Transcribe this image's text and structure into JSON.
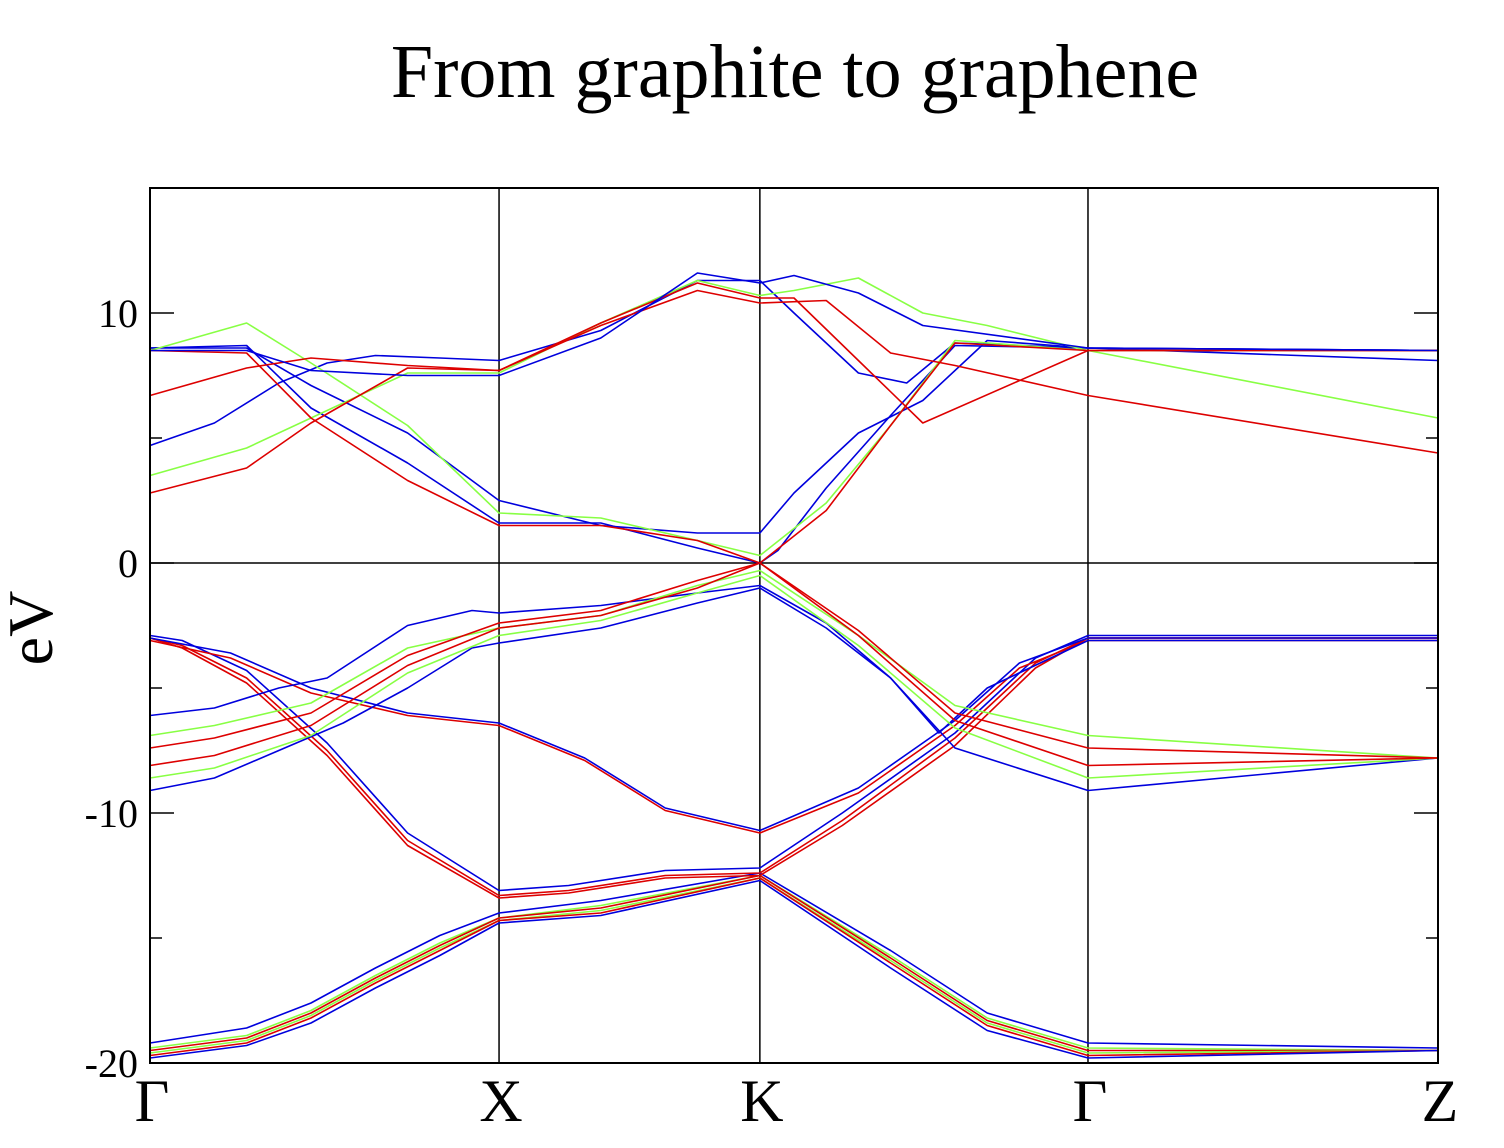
{
  "chart_data": {
    "type": "line",
    "title": "From graphite to graphene",
    "xlabel": "",
    "ylabel": "eV",
    "ylim": [
      -20,
      15
    ],
    "xlim": [
      0,
      4
    ],
    "y_ticks": [
      -20,
      -10,
      0,
      10
    ],
    "y_minor_ticks": [
      -15,
      -5,
      5
    ],
    "k_points": [
      {
        "x": 0,
        "label": "Γ"
      },
      {
        "x": 1.084,
        "label": "X"
      },
      {
        "x": 1.894,
        "label": "K"
      },
      {
        "x": 2.913,
        "label": "Γ"
      },
      {
        "x": 4,
        "label": "Z"
      }
    ],
    "zero_line": 0,
    "colors": {
      "blue": "#0000dd",
      "green": "#88ff44",
      "red": "#dd0000",
      "axis": "#000000"
    },
    "series": [
      {
        "color": "blue",
        "x": [
          0,
          0.3,
          0.5,
          0.7,
          0.9,
          1.084,
          1.4,
          1.894,
          2.3,
          2.6,
          2.913,
          4
        ],
        "y": [
          -19.2,
          -18.6,
          -17.6,
          -16.2,
          -14.9,
          -14.0,
          -13.5,
          -12.4,
          -15.5,
          -18.0,
          -19.2,
          -19.4
        ]
      },
      {
        "color": "green",
        "x": [
          0,
          0.3,
          0.5,
          0.7,
          0.9,
          1.084,
          1.4,
          1.894,
          2.3,
          2.6,
          2.913,
          4
        ],
        "y": [
          -19.4,
          -18.9,
          -17.9,
          -16.5,
          -15.2,
          -14.2,
          -13.7,
          -12.5,
          -15.7,
          -18.2,
          -19.4,
          -19.5
        ]
      },
      {
        "color": "red",
        "x": [
          0,
          0.3,
          0.5,
          0.7,
          0.9,
          1.084,
          1.4,
          1.894,
          2.3,
          2.6,
          2.913,
          4
        ],
        "y": [
          -19.5,
          -19.0,
          -18.0,
          -16.6,
          -15.3,
          -14.2,
          -13.8,
          -12.5,
          -15.8,
          -18.3,
          -19.5,
          -19.5
        ]
      },
      {
        "color": "green",
        "x": [
          0,
          0.3,
          0.5,
          0.7,
          0.9,
          1.084,
          1.4,
          1.894,
          2.3,
          2.6,
          2.913,
          4
        ],
        "y": [
          -19.6,
          -19.1,
          -18.1,
          -16.7,
          -15.4,
          -14.3,
          -13.9,
          -12.6,
          -15.9,
          -18.4,
          -19.6,
          -19.5
        ]
      },
      {
        "color": "red",
        "x": [
          0,
          0.3,
          0.5,
          0.7,
          0.9,
          1.084,
          1.4,
          1.894,
          2.3,
          2.6,
          2.913,
          4
        ],
        "y": [
          -19.7,
          -19.2,
          -18.2,
          -16.8,
          -15.5,
          -14.3,
          -14.0,
          -12.6,
          -16.0,
          -18.5,
          -19.7,
          -19.5
        ]
      },
      {
        "color": "blue",
        "x": [
          0,
          0.3,
          0.5,
          0.7,
          0.9,
          1.084,
          1.4,
          1.894,
          2.3,
          2.6,
          2.913,
          4
        ],
        "y": [
          -19.8,
          -19.3,
          -18.4,
          -17.0,
          -15.7,
          -14.4,
          -14.1,
          -12.7,
          -16.2,
          -18.7,
          -19.8,
          -19.5
        ]
      },
      {
        "color": "blue",
        "x": [
          0,
          0.1,
          0.3,
          0.55,
          0.8,
          1.084,
          1.3,
          1.6,
          1.894,
          2.15,
          2.5,
          2.75,
          2.913,
          4
        ],
        "y": [
          -2.9,
          -3.1,
          -4.3,
          -7.2,
          -10.8,
          -13.1,
          -12.9,
          -12.3,
          -12.2,
          -10.0,
          -6.8,
          -3.8,
          -2.9,
          -2.9
        ]
      },
      {
        "color": "red",
        "x": [
          0,
          0.1,
          0.3,
          0.55,
          0.8,
          1.084,
          1.3,
          1.6,
          1.894,
          2.15,
          2.5,
          2.75,
          2.913,
          4
        ],
        "y": [
          -3.0,
          -3.3,
          -4.6,
          -7.5,
          -11.1,
          -13.3,
          -13.1,
          -12.5,
          -12.4,
          -10.3,
          -7.0,
          -4.0,
          -3.0,
          -3.0
        ]
      },
      {
        "color": "red",
        "x": [
          0,
          0.1,
          0.3,
          0.55,
          0.8,
          1.084,
          1.3,
          1.6,
          1.894,
          2.15,
          2.5,
          2.75,
          2.913,
          4
        ],
        "y": [
          -3.0,
          -3.4,
          -4.8,
          -7.7,
          -11.3,
          -13.4,
          -13.2,
          -12.6,
          -12.5,
          -10.5,
          -7.3,
          -4.2,
          -3.0,
          -3.0
        ]
      },
      {
        "color": "blue",
        "x": [
          0,
          0.25,
          0.5,
          0.8,
          1.084,
          1.35,
          1.6,
          1.894,
          2.2,
          2.5,
          2.7,
          2.913,
          4
        ],
        "y": [
          -3.0,
          -3.6,
          -5.0,
          -6.0,
          -6.4,
          -7.8,
          -9.8,
          -10.7,
          -9.0,
          -6.3,
          -4.0,
          -3.0,
          -3.0
        ]
      },
      {
        "color": "red",
        "x": [
          0,
          0.25,
          0.5,
          0.8,
          1.084,
          1.35,
          1.6,
          1.894,
          2.2,
          2.5,
          2.7,
          2.913,
          4
        ],
        "y": [
          -3.1,
          -3.8,
          -5.2,
          -6.1,
          -6.5,
          -7.9,
          -9.9,
          -10.8,
          -9.2,
          -6.5,
          -4.2,
          -3.1,
          -3.1
        ]
      },
      {
        "color": "blue",
        "x": [
          0,
          0.2,
          0.4,
          0.55,
          0.8,
          1.0,
          1.084,
          1.4,
          1.7,
          1.894,
          2.1,
          2.3,
          2.45,
          2.6,
          2.913,
          4
        ],
        "y": [
          -6.1,
          -5.8,
          -5.0,
          -4.6,
          -2.5,
          -1.9,
          -2.0,
          -1.7,
          -1.2,
          -0.9,
          -2.4,
          -4.6,
          -6.8,
          -5.0,
          -3.1,
          -3.1
        ]
      },
      {
        "color": "blue",
        "x": [
          0,
          0.2,
          0.4,
          0.6,
          0.8,
          1.0,
          1.084,
          1.4,
          1.7,
          1.894,
          2.1,
          2.3,
          2.5,
          2.913,
          4
        ],
        "y": [
          -9.1,
          -8.6,
          -7.5,
          -6.4,
          -5.0,
          -3.4,
          -3.2,
          -2.6,
          -1.6,
          -1.0,
          -2.6,
          -4.6,
          -7.4,
          -9.1,
          -7.8
        ]
      },
      {
        "color": "green",
        "x": [
          0,
          0.2,
          0.5,
          0.8,
          1.084,
          1.4,
          1.7,
          1.894,
          2.2,
          2.5,
          2.913,
          4
        ],
        "y": [
          -6.9,
          -6.5,
          -5.6,
          -3.4,
          -2.6,
          -2.1,
          -0.9,
          -0.3,
          -2.9,
          -5.7,
          -6.9,
          -7.8
        ]
      },
      {
        "color": "green",
        "x": [
          0,
          0.2,
          0.5,
          0.8,
          1.084,
          1.4,
          1.7,
          1.894,
          2.2,
          2.5,
          2.913,
          4
        ],
        "y": [
          -8.6,
          -8.2,
          -6.9,
          -4.4,
          -2.9,
          -2.3,
          -1.2,
          -0.5,
          -3.3,
          -6.6,
          -8.6,
          -7.8
        ]
      },
      {
        "color": "red",
        "x": [
          0,
          0.2,
          0.5,
          0.8,
          1.084,
          1.4,
          1.7,
          1.894,
          2.2,
          2.5,
          2.913,
          4
        ],
        "y": [
          -7.4,
          -7.0,
          -6.0,
          -3.7,
          -2.4,
          -1.9,
          -0.7,
          0.0,
          -2.7,
          -6.0,
          -7.4,
          -7.8
        ]
      },
      {
        "color": "red",
        "x": [
          0,
          0.2,
          0.5,
          0.8,
          1.084,
          1.4,
          1.7,
          1.894,
          2.2,
          2.5,
          2.913,
          4
        ],
        "y": [
          -8.1,
          -7.7,
          -6.5,
          -4.1,
          -2.6,
          -2.1,
          -1.0,
          0.0,
          -2.9,
          -6.3,
          -8.1,
          -7.8
        ]
      },
      {
        "color": "blue",
        "x": [
          0,
          0.2,
          0.4,
          0.55,
          0.7,
          0.9,
          1.084,
          1.4,
          1.7,
          1.894,
          2.0,
          2.2,
          2.35,
          2.5,
          2.913,
          4
        ],
        "y": [
          4.7,
          5.6,
          7.2,
          8.0,
          8.3,
          8.2,
          8.1,
          9.3,
          11.3,
          11.3,
          10.0,
          7.6,
          7.2,
          8.8,
          8.6,
          8.5
        ]
      },
      {
        "color": "blue",
        "x": [
          0,
          0.3,
          0.5,
          0.8,
          1.084,
          1.4,
          1.7,
          1.894,
          2.0,
          2.2,
          2.4,
          2.6,
          2.913,
          4
        ],
        "y": [
          8.6,
          8.6,
          7.1,
          5.2,
          2.5,
          1.5,
          1.2,
          1.2,
          2.8,
          5.2,
          6.5,
          8.9,
          8.6,
          8.1
        ]
      },
      {
        "color": "blue",
        "x": [
          0,
          0.3,
          0.5,
          0.8,
          1.084,
          1.4,
          1.7,
          1.894,
          1.95,
          2.1,
          2.3,
          2.5,
          2.913,
          4
        ],
        "y": [
          8.6,
          8.7,
          6.2,
          4.0,
          1.6,
          1.6,
          0.6,
          0.0,
          0.5,
          3.0,
          5.9,
          8.7,
          8.6,
          8.5
        ]
      },
      {
        "color": "green",
        "x": [
          0,
          0.3,
          0.5,
          0.8,
          1.084,
          1.4,
          1.7,
          1.894,
          2.0,
          2.2,
          2.4,
          2.6,
          2.913,
          4
        ],
        "y": [
          3.5,
          4.6,
          5.8,
          7.6,
          7.6,
          9.6,
          11.3,
          10.7,
          10.9,
          11.4,
          10.0,
          9.5,
          8.5,
          5.8
        ]
      },
      {
        "color": "green",
        "x": [
          0,
          0.3,
          0.5,
          0.8,
          1.084,
          1.4,
          1.7,
          1.894,
          2.1,
          2.3,
          2.5,
          2.913,
          4
        ],
        "y": [
          8.5,
          9.6,
          8.0,
          5.5,
          2.0,
          1.8,
          0.9,
          0.3,
          2.4,
          5.5,
          8.9,
          8.5,
          8.5
        ]
      },
      {
        "color": "red",
        "x": [
          0,
          0.3,
          0.5,
          0.8,
          1.084,
          1.4,
          1.7,
          1.894,
          2.1,
          2.3,
          2.5,
          2.913,
          4
        ],
        "y": [
          2.8,
          3.8,
          5.6,
          7.8,
          7.7,
          9.5,
          10.9,
          10.4,
          10.5,
          8.4,
          7.9,
          6.7,
          4.4
        ]
      },
      {
        "color": "red",
        "x": [
          0,
          0.3,
          0.5,
          0.8,
          1.084,
          1.4,
          1.7,
          1.894,
          2.0,
          2.2,
          2.4,
          2.913,
          4
        ],
        "y": [
          6.7,
          7.8,
          8.2,
          7.9,
          7.7,
          9.6,
          11.2,
          10.6,
          10.6,
          8.1,
          5.6,
          8.5,
          8.5
        ]
      },
      {
        "color": "red",
        "x": [
          0,
          0.3,
          0.5,
          0.8,
          1.084,
          1.4,
          1.7,
          1.894,
          2.1,
          2.3,
          2.5,
          2.913,
          4
        ],
        "y": [
          8.5,
          8.4,
          5.8,
          3.3,
          1.5,
          1.5,
          0.9,
          0.0,
          2.1,
          5.5,
          8.8,
          8.5,
          8.5
        ]
      },
      {
        "color": "blue",
        "x": [
          0,
          0.3,
          0.5,
          0.8,
          1.084,
          1.4,
          1.7,
          1.894,
          2.0,
          2.2,
          2.4,
          2.913,
          4
        ],
        "y": [
          8.5,
          8.5,
          7.7,
          7.5,
          7.5,
          9.0,
          11.6,
          11.2,
          11.5,
          10.8,
          9.5,
          8.6,
          8.5
        ]
      }
    ]
  }
}
